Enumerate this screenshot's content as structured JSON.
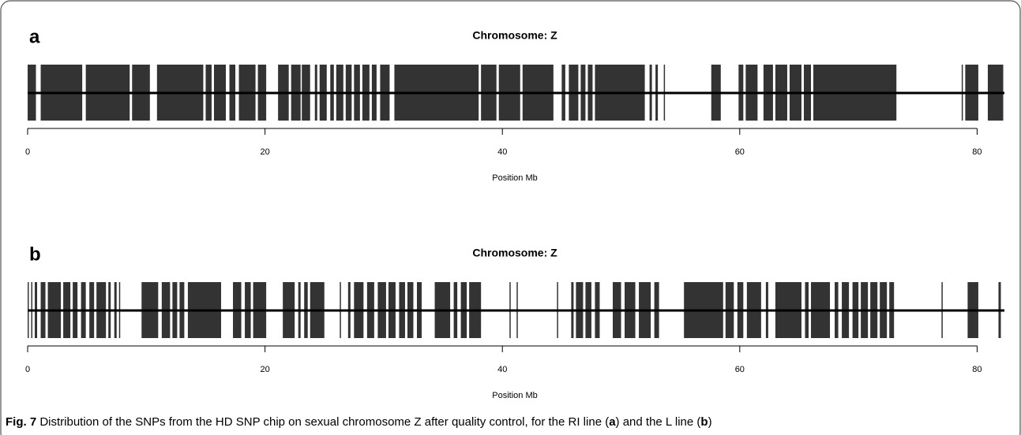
{
  "chart_data": [
    {
      "type": "segments",
      "panel_label": "a",
      "title": "Chromosome: Z",
      "x_label": "Position Mb",
      "color": "#333333",
      "xlim": [
        0,
        82.3
      ],
      "xticks": [
        0,
        20,
        40,
        60,
        80
      ],
      "segments": [
        [
          0,
          0.7
        ],
        [
          1.1,
          4.6
        ],
        [
          4.9,
          8.6
        ],
        [
          8.8,
          10.3
        ],
        [
          10.9,
          14.8
        ],
        [
          15,
          15.5
        ],
        [
          15.7,
          16.7
        ],
        [
          17,
          17.5
        ],
        [
          17.8,
          19.2
        ],
        [
          19.4,
          20.1
        ],
        [
          21.1,
          22
        ],
        [
          22.2,
          23
        ],
        [
          23.1,
          23.8
        ],
        [
          24.2,
          24.4
        ],
        [
          24.6,
          25.2
        ],
        [
          25.5,
          25.8
        ],
        [
          26,
          26.6
        ],
        [
          26.8,
          27.3
        ],
        [
          27.5,
          28
        ],
        [
          28.2,
          28.8
        ],
        [
          29,
          29.4
        ],
        [
          29.7,
          30.5
        ],
        [
          30.9,
          38
        ],
        [
          38.2,
          39.5
        ],
        [
          39.7,
          41.5
        ],
        [
          41.7,
          44.3
        ],
        [
          45,
          45.3
        ],
        [
          45.6,
          46.4
        ],
        [
          46.6,
          47
        ],
        [
          47.2,
          47.6
        ],
        [
          47.8,
          52
        ],
        [
          52.4,
          52.6
        ],
        [
          52.9,
          53.1
        ],
        [
          53.6,
          53.7
        ],
        [
          57.6,
          58.4
        ],
        [
          59.9,
          60.3
        ],
        [
          60.5,
          61.5
        ],
        [
          62,
          62.8
        ],
        [
          63,
          64
        ],
        [
          64.2,
          65.2
        ],
        [
          65.4,
          66
        ],
        [
          66.2,
          73.2
        ],
        [
          78.7,
          78.8
        ],
        [
          79,
          80.1
        ],
        [
          80.9,
          82.2
        ]
      ]
    },
    {
      "type": "segments",
      "panel_label": "b",
      "title": "Chromosome: Z",
      "x_label": "Position Mb",
      "color": "#333333",
      "xlim": [
        0,
        82.3
      ],
      "xticks": [
        0,
        20,
        40,
        60,
        80
      ],
      "segments": [
        [
          0,
          0.1
        ],
        [
          0.3,
          0.4
        ],
        [
          0.6,
          0.8
        ],
        [
          1.1,
          1.5
        ],
        [
          1.7,
          2.8
        ],
        [
          3,
          3.6
        ],
        [
          3.8,
          4.2
        ],
        [
          4.5,
          4.9
        ],
        [
          5.2,
          5.6
        ],
        [
          5.8,
          6.6
        ],
        [
          6.8,
          7
        ],
        [
          7.3,
          7.5
        ],
        [
          7.7,
          7.8
        ],
        [
          9.6,
          11
        ],
        [
          11.3,
          12
        ],
        [
          12.2,
          12.6
        ],
        [
          12.8,
          13.2
        ],
        [
          13.5,
          16.3
        ],
        [
          17.3,
          18
        ],
        [
          18.3,
          18.8
        ],
        [
          19,
          20.1
        ],
        [
          21.5,
          22.5
        ],
        [
          22.8,
          23
        ],
        [
          23.3,
          23.6
        ],
        [
          23.8,
          25
        ],
        [
          26.3,
          26.4
        ],
        [
          27,
          27.2
        ],
        [
          27.5,
          28.3
        ],
        [
          28.6,
          29.2
        ],
        [
          29.5,
          30.2
        ],
        [
          30.4,
          31
        ],
        [
          31.3,
          31.8
        ],
        [
          32,
          32.5
        ],
        [
          32.8,
          33.2
        ],
        [
          34.3,
          35.6
        ],
        [
          35.9,
          36.2
        ],
        [
          36.5,
          37
        ],
        [
          37.2,
          38.2
        ],
        [
          40.6,
          40.7
        ],
        [
          41.2,
          41.3
        ],
        [
          44.6,
          44.7
        ],
        [
          45.8,
          46
        ],
        [
          46.2,
          46.8
        ],
        [
          47,
          47.5
        ],
        [
          47.8,
          48.2
        ],
        [
          49.3,
          50
        ],
        [
          50.3,
          51.2
        ],
        [
          51.5,
          52.5
        ],
        [
          52.8,
          53.2
        ],
        [
          55.3,
          58.6
        ],
        [
          58.8,
          59.5
        ],
        [
          59.8,
          60.3
        ],
        [
          60.6,
          61.8
        ],
        [
          62.2,
          62.4
        ],
        [
          63,
          65.2
        ],
        [
          65.5,
          65.8
        ],
        [
          66,
          67.6
        ],
        [
          68,
          68.3
        ],
        [
          68.6,
          69.2
        ],
        [
          69.5,
          70
        ],
        [
          70.2,
          70.8
        ],
        [
          71,
          71.6
        ],
        [
          71.8,
          72.4
        ],
        [
          72.6,
          73
        ],
        [
          77,
          77.1
        ],
        [
          79.2,
          80.1
        ],
        [
          81.8,
          82
        ]
      ]
    }
  ],
  "caption": {
    "label": "Fig. 7",
    "parts": [
      " Distribution of the SNPs from the HD SNP chip on sexual chromosome Z after quality control, for the RI line (",
      "a",
      ") and the L line (",
      "b",
      ")"
    ]
  }
}
